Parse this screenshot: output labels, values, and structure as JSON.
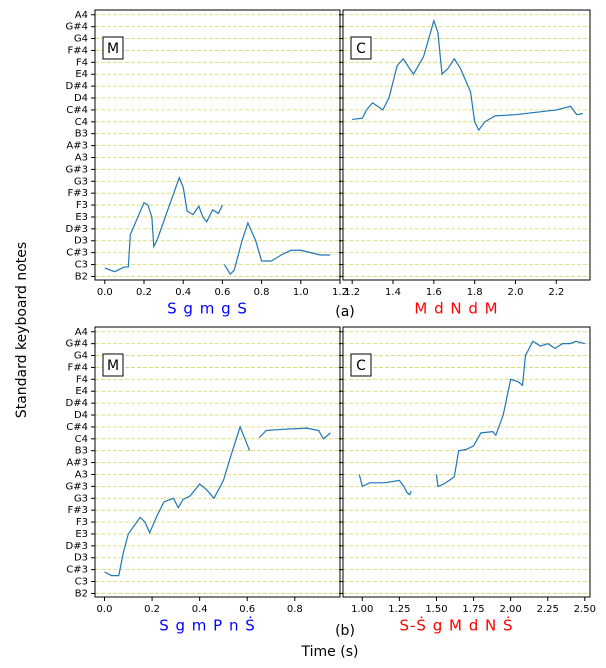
{
  "y_label": "Standard keyboard notes",
  "x_label": "Time (s)",
  "captions": [
    "(a)",
    "(b)"
  ],
  "chart_data": [
    {
      "type": "line",
      "panel_label": "M",
      "annotation": "S g m g S",
      "annotation_color": "#0000ff",
      "x": [
        0.0,
        0.05,
        0.1,
        0.12,
        0.13,
        0.2,
        0.22,
        0.24,
        0.25,
        0.27,
        0.33,
        0.38,
        0.4,
        0.42,
        0.45,
        0.48,
        0.5,
        0.52,
        0.55,
        0.58,
        0.6,
        0.605,
        0.61,
        0.64,
        0.66,
        0.7,
        0.73,
        0.77,
        0.8,
        0.85,
        0.9,
        0.95,
        1.0,
        1.05,
        1.1,
        1.15
      ],
      "series": [
        {
          "color": "#1f77b4",
          "values": [
            0.7,
            0.4,
            0.8,
            0.8,
            3.5,
            6.2,
            6.0,
            5.0,
            2.5,
            3.2,
            6.0,
            8.3,
            7.5,
            5.5,
            5.2,
            5.9,
            5.0,
            4.6,
            5.6,
            5.3,
            6.0,
            null,
            1.0,
            0.2,
            0.5,
            3.0,
            4.5,
            3.0,
            1.3,
            1.3,
            1.8,
            2.2,
            2.2,
            2.0,
            1.8,
            1.8
          ]
        }
      ],
      "xlim": [
        -0.05,
        1.2
      ],
      "xticks": [
        {
          "value": 0,
          "label": "0.0"
        },
        0.2,
        0.4,
        0.6,
        0.8,
        {
          "value": 1,
          "label": "1.0"
        },
        1.2
      ],
      "ylim": [
        -0.3,
        22.4
      ],
      "grid": true,
      "yticks": [
        {
          "value": 0,
          "label": "B2"
        },
        {
          "value": 1,
          "label": "C3"
        },
        {
          "value": 2,
          "label": "C#3"
        },
        {
          "value": 3,
          "label": "D3"
        },
        {
          "value": 4,
          "label": "D#3"
        },
        {
          "value": 5,
          "label": "E3"
        },
        {
          "value": 6,
          "label": "F3"
        },
        {
          "value": 7,
          "label": "F#3"
        },
        {
          "value": 8,
          "label": "G3"
        },
        {
          "value": 9,
          "label": "G#3"
        },
        {
          "value": 10,
          "label": "A3"
        },
        {
          "value": 11,
          "label": "A#3"
        },
        {
          "value": 12,
          "label": "B3"
        },
        {
          "value": 13,
          "label": "C4"
        },
        {
          "value": 14,
          "label": "C#4"
        },
        {
          "value": 15,
          "label": "D4"
        },
        {
          "value": 16,
          "label": "D#4"
        },
        {
          "value": 17,
          "label": "E4"
        },
        {
          "value": 18,
          "label": "F4"
        },
        {
          "value": 19,
          "label": "F#4"
        },
        {
          "value": 20,
          "label": "G4"
        },
        {
          "value": 21,
          "label": "G#4"
        },
        {
          "value": 22,
          "label": "A4"
        }
      ]
    },
    {
      "type": "line",
      "panel_label": "C",
      "annotation": "M d N d M",
      "annotation_color": "#ff0000",
      "x": [
        1.2,
        1.25,
        1.27,
        1.3,
        1.35,
        1.38,
        1.42,
        1.45,
        1.5,
        1.55,
        1.6,
        1.62,
        1.64,
        1.67,
        1.7,
        1.73,
        1.78,
        1.8,
        1.82,
        1.85,
        1.9,
        2.0,
        2.1,
        2.2,
        2.27,
        2.3,
        2.33
      ],
      "series": [
        {
          "color": "#1f77b4",
          "values": [
            13.2,
            13.3,
            14.0,
            14.6,
            14.0,
            15.0,
            17.7,
            18.3,
            17.0,
            18.5,
            21.5,
            20.5,
            17.0,
            17.5,
            18.3,
            17.5,
            15.5,
            13.0,
            12.3,
            13.0,
            13.5,
            13.6,
            13.8,
            14.0,
            14.3,
            13.6,
            13.7
          ]
        }
      ],
      "xlim": [
        1.155,
        2.365
      ],
      "xticks": [
        1.2,
        1.4,
        1.6,
        1.8,
        {
          "value": 2,
          "label": "2.0"
        },
        2.2
      ],
      "ylim": [
        -0.3,
        22.4
      ],
      "grid": true,
      "yticks": [
        0,
        1,
        2,
        3,
        4,
        5,
        6,
        7,
        8,
        9,
        10,
        11,
        12,
        13,
        14,
        15,
        16,
        17,
        18,
        19,
        20,
        21,
        22
      ]
    },
    {
      "type": "line",
      "panel_label": "M",
      "annotation": "S g m P n Ṡ",
      "annotation_color": "#0000ff",
      "x": [
        0.0,
        0.03,
        0.06,
        0.08,
        0.1,
        0.15,
        0.17,
        0.19,
        0.22,
        0.25,
        0.29,
        0.31,
        0.33,
        0.36,
        0.4,
        0.43,
        0.46,
        0.5,
        0.53,
        0.57,
        0.59,
        0.61,
        0.63,
        0.65,
        0.68,
        0.75,
        0.85,
        0.9,
        0.92,
        0.95
      ],
      "series": [
        {
          "color": "#1f77b4",
          "values": [
            1.8,
            1.5,
            1.5,
            3.5,
            5.0,
            6.4,
            6.0,
            5.1,
            6.5,
            7.7,
            8.0,
            7.2,
            7.9,
            8.2,
            9.2,
            8.7,
            8.0,
            9.5,
            11.5,
            14.0,
            13.0,
            12.0,
            null,
            13.1,
            13.7,
            13.8,
            13.9,
            13.7,
            13.0,
            13.5
          ]
        }
      ],
      "xlim": [
        -0.04,
        0.99
      ],
      "xticks": [
        {
          "value": 0,
          "label": "0.0"
        },
        0.2,
        0.4,
        0.6,
        0.8
      ],
      "ylim": [
        -0.3,
        22.4
      ],
      "grid": true,
      "yticks": [
        {
          "value": 0,
          "label": "B2"
        },
        {
          "value": 1,
          "label": "C3"
        },
        {
          "value": 2,
          "label": "C#3"
        },
        {
          "value": 3,
          "label": "D3"
        },
        {
          "value": 4,
          "label": "D#3"
        },
        {
          "value": 5,
          "label": "E3"
        },
        {
          "value": 6,
          "label": "F3"
        },
        {
          "value": 7,
          "label": "F#3"
        },
        {
          "value": 8,
          "label": "G3"
        },
        {
          "value": 9,
          "label": "G#3"
        },
        {
          "value": 10,
          "label": "A3"
        },
        {
          "value": 11,
          "label": "A#3"
        },
        {
          "value": 12,
          "label": "B3"
        },
        {
          "value": 13,
          "label": "C4"
        },
        {
          "value": 14,
          "label": "C#4"
        },
        {
          "value": 15,
          "label": "D4"
        },
        {
          "value": 16,
          "label": "D#4"
        },
        {
          "value": 17,
          "label": "E4"
        },
        {
          "value": 18,
          "label": "F4"
        },
        {
          "value": 19,
          "label": "F#4"
        },
        {
          "value": 20,
          "label": "G4"
        },
        {
          "value": 21,
          "label": "G#4"
        },
        {
          "value": 22,
          "label": "A4"
        }
      ]
    },
    {
      "type": "line",
      "panel_label": "C",
      "annotation": "S-Ṡ g M d N Ṡ",
      "annotation_color": "#ff0000",
      "x": [
        0.98,
        1.0,
        1.05,
        1.15,
        1.25,
        1.28,
        1.3,
        1.32,
        1.33,
        1.4,
        1.5,
        1.51,
        1.55,
        1.62,
        1.65,
        1.7,
        1.75,
        1.8,
        1.88,
        1.9,
        1.95,
        2.0,
        2.05,
        2.08,
        2.1,
        2.15,
        2.2,
        2.25,
        2.3,
        2.35,
        2.4,
        2.44,
        2.5
      ],
      "series": [
        {
          "color": "#1f77b4",
          "values": [
            10.0,
            9.0,
            9.3,
            9.3,
            9.5,
            9.0,
            8.5,
            8.3,
            8.6,
            null,
            10.0,
            9.0,
            9.2,
            9.8,
            12.0,
            12.1,
            12.4,
            13.5,
            13.6,
            13.3,
            15.0,
            18.0,
            17.8,
            17.5,
            20.0,
            21.2,
            20.8,
            21.0,
            20.6,
            21.0,
            21.0,
            21.2,
            21.0
          ]
        }
      ],
      "xlim": [
        0.87,
        2.535
      ],
      "xticks": [
        {
          "value": 1,
          "label": "1.00"
        },
        1.25,
        {
          "value": 1.5,
          "label": "1.50"
        },
        1.75,
        {
          "value": 2,
          "label": "2.00"
        },
        2.25,
        {
          "value": 2.5,
          "label": "2.50"
        }
      ],
      "ylim": [
        -0.3,
        22.4
      ],
      "grid": true,
      "yticks": [
        0,
        1,
        2,
        3,
        4,
        5,
        6,
        7,
        8,
        9,
        10,
        11,
        12,
        13,
        14,
        15,
        16,
        17,
        18,
        19,
        20,
        21,
        22
      ]
    }
  ]
}
